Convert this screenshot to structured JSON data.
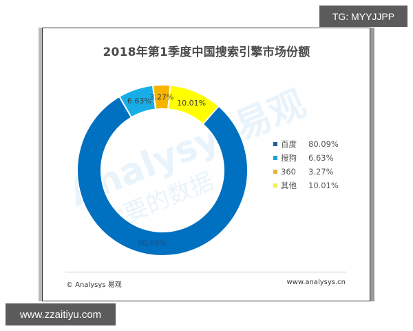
{
  "title": "2018年第1季度中国搜索引擎市场份额",
  "chart_data": {
    "type": "pie",
    "variant": "donut",
    "title": "2018年第1季度中国搜索引擎市场份额",
    "categories": [
      "百度",
      "搜狗",
      "360",
      "其他"
    ],
    "values": [
      80.09,
      6.63,
      3.27,
      10.01
    ],
    "value_labels": [
      "80.09%",
      "6.63%",
      "3.27%",
      "10.01%"
    ],
    "unit": "%",
    "colors": [
      "#0070c0",
      "#17aee8",
      "#f7b500",
      "#ffff00"
    ],
    "legend_position": "right",
    "clockwise_order_from_top": [
      "360",
      "其他",
      "百度",
      "搜狗"
    ],
    "start_angle_deg": -6.5
  },
  "legend": {
    "items": [
      {
        "name": "百度",
        "value": "80.09%",
        "color": "#1f5f9e"
      },
      {
        "name": "搜狗",
        "value": "6.63%",
        "color": "#1ba3d0"
      },
      {
        "name": "360",
        "value": "3.27%",
        "color": "#e5b53a"
      },
      {
        "name": "其他",
        "value": "10.01%",
        "color": "#eef24a"
      }
    ]
  },
  "watermark": {
    "line1": "Analysys易观",
    "line2": "你要的数据"
  },
  "footer": {
    "left": "© Analysys 易观",
    "right": "www.analysys.cn"
  },
  "overlay": {
    "tag": "TG: MYYJJPP",
    "site": "www.zzaitiyu.com"
  }
}
